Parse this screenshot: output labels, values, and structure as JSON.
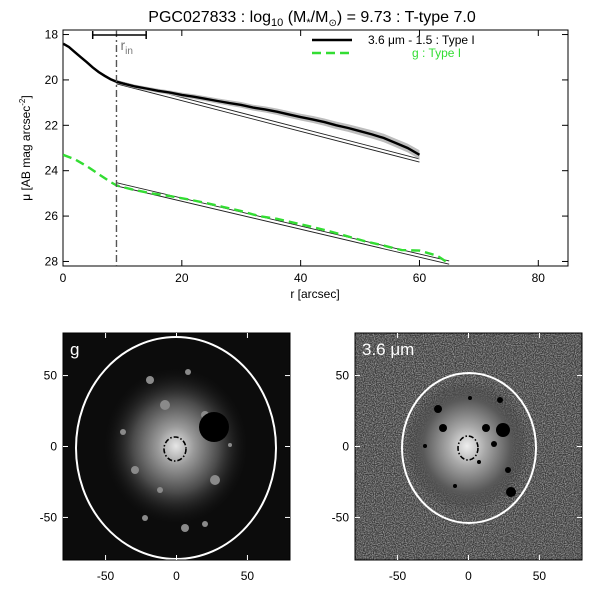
{
  "chart_data": [
    {
      "type": "line",
      "title_parts": {
        "prefix": "PGC027833 : log",
        "sub10": "10",
        "paren_open": " (M",
        "star": "*",
        "slash": "/M",
        "sun": "⊙",
        "paren_close": ") = 9.73 : T-type 7.0"
      },
      "xlabel": "r [arcsec]",
      "ylabel": "μ [AB mag arcsec",
      "ylabel_sup": "-2",
      "ylabel_close": "]",
      "xlim": [
        0,
        85
      ],
      "ylim": [
        28.2,
        17.8
      ],
      "y_inverted": true,
      "xticks": [
        0,
        20,
        40,
        60,
        80
      ],
      "yticks": [
        18,
        20,
        22,
        24,
        26,
        28
      ],
      "r_in": {
        "value": 9,
        "label": "r",
        "label_sub": "in",
        "err": [
          5,
          14
        ]
      },
      "legend": [
        {
          "label": "3.6 μm - 1.5 : Type I",
          "color": "#000000",
          "dash": "solid"
        },
        {
          "label": "g : Type I",
          "color": "#33dd33",
          "dash": "dashed"
        }
      ],
      "series": [
        {
          "name": "3.6 μm - 1.5 : Type I",
          "color": "#000000",
          "x": [
            0,
            1,
            2,
            3,
            4,
            5,
            6,
            7,
            8,
            9,
            10,
            12,
            14,
            16,
            18,
            20,
            22,
            24,
            26,
            28,
            30,
            32,
            34,
            36,
            38,
            40,
            42,
            44,
            46,
            48,
            50,
            52,
            54,
            56,
            58,
            60
          ],
          "y": [
            18.4,
            18.55,
            18.78,
            19.0,
            19.22,
            19.45,
            19.65,
            19.82,
            19.97,
            20.08,
            20.15,
            20.28,
            20.38,
            20.48,
            20.56,
            20.66,
            20.74,
            20.83,
            20.93,
            21.02,
            21.1,
            21.22,
            21.3,
            21.4,
            21.52,
            21.64,
            21.74,
            21.86,
            22.0,
            22.12,
            22.26,
            22.4,
            22.56,
            22.78,
            23.0,
            23.3
          ]
        },
        {
          "name": "g : Type I",
          "color": "#33dd33",
          "x": [
            0,
            2,
            4,
            6,
            8,
            9,
            10,
            12,
            15,
            18,
            21,
            24,
            27,
            30,
            33,
            36,
            39,
            42,
            45,
            48,
            51,
            54,
            57,
            60,
            63,
            65
          ],
          "y": [
            23.3,
            23.5,
            23.8,
            24.15,
            24.5,
            24.65,
            24.72,
            24.85,
            25.0,
            25.12,
            25.26,
            25.42,
            25.6,
            25.78,
            26.0,
            26.12,
            26.3,
            26.48,
            26.68,
            26.9,
            27.12,
            27.3,
            27.5,
            27.52,
            27.75,
            28.1
          ]
        }
      ],
      "fits": [
        {
          "x": [
            9,
            60
          ],
          "y": [
            20.1,
            23.55
          ]
        },
        {
          "x": [
            9,
            65
          ],
          "y": [
            24.6,
            28.05
          ]
        }
      ]
    },
    {
      "type": "image",
      "label": "g",
      "xlim": [
        -80,
        80
      ],
      "ylim": [
        -80,
        80
      ],
      "xticks": [
        -50,
        0,
        50
      ],
      "yticks": [
        50,
        0,
        -50
      ]
    },
    {
      "type": "image",
      "label": "3.6 μm",
      "xlim": [
        -80,
        80
      ],
      "ylim": [
        -80,
        80
      ],
      "xticks": [
        -50,
        0,
        50
      ],
      "yticks": [
        50,
        0,
        -50
      ]
    }
  ]
}
